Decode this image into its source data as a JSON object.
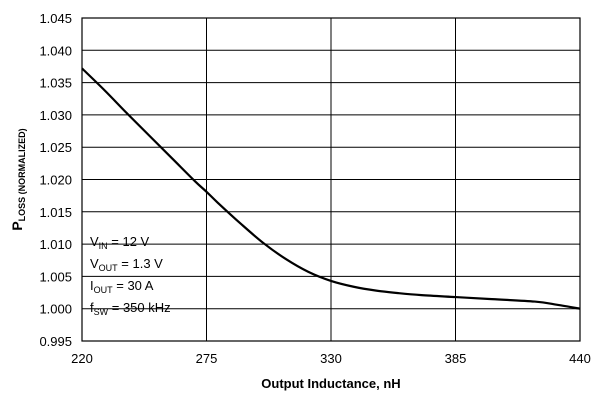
{
  "chart_data": {
    "type": "line",
    "xlabel": "Output Inductance, nH",
    "ylabel": {
      "main": "P",
      "sub": "LOSS (NORMALIZED)"
    },
    "xlim": [
      220,
      440
    ],
    "ylim": [
      0.995,
      1.045
    ],
    "xticks": [
      "220",
      "275",
      "330",
      "385",
      "440"
    ],
    "yticks": [
      "1.045",
      "1.040",
      "1.035",
      "1.030",
      "1.025",
      "1.020",
      "1.015",
      "1.010",
      "1.005",
      "1.000",
      "0.995"
    ],
    "grid": true,
    "series": [
      {
        "x": [
          220,
          230,
          240,
          250,
          260,
          270,
          275,
          280,
          290,
          300,
          310,
          320,
          330,
          340,
          350,
          360,
          370,
          385,
          400,
          420,
          430,
          440
        ],
        "y": [
          1.0372,
          1.0338,
          1.0302,
          1.0267,
          1.0232,
          1.0197,
          1.0181,
          1.0164,
          1.0132,
          1.0102,
          1.0077,
          1.0057,
          1.0043,
          1.0034,
          1.0028,
          1.0024,
          1.0021,
          1.0018,
          1.0015,
          1.0011,
          1.0006,
          1.0
        ]
      }
    ],
    "annotations": [
      {
        "main": "V",
        "sub": "IN",
        "rest": " = 12 V"
      },
      {
        "main": "V",
        "sub": "OUT",
        "rest": " = 1.3 V"
      },
      {
        "main": "I",
        "sub": "OUT",
        "rest": " = 30 A"
      },
      {
        "main": "f",
        "sub": "SW",
        "rest": " = 350 kHz"
      }
    ]
  }
}
